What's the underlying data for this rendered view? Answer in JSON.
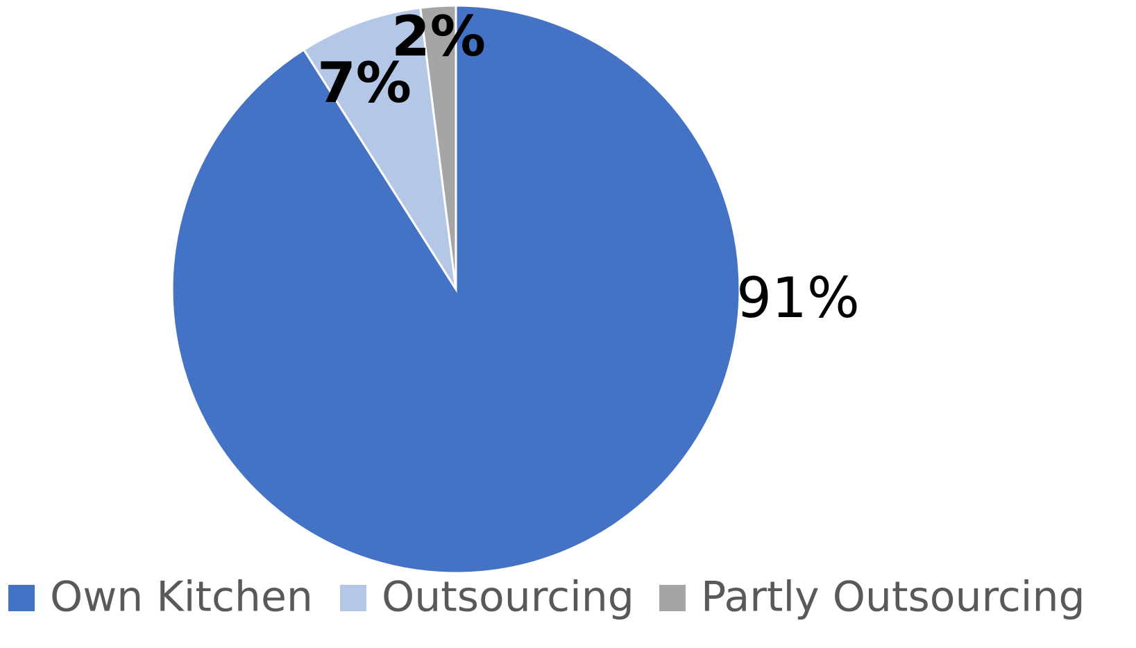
{
  "chart_data": {
    "type": "pie",
    "categories": [
      "Own Kitchen",
      "Outsourcing",
      "Partly Outsourcing"
    ],
    "values": [
      91,
      7,
      2
    ],
    "value_labels": [
      "91%",
      "7%",
      "2%"
    ],
    "colors": [
      "#4472c4",
      "#b4c7e7",
      "#a5a5a5"
    ],
    "legend": "bottom"
  }
}
